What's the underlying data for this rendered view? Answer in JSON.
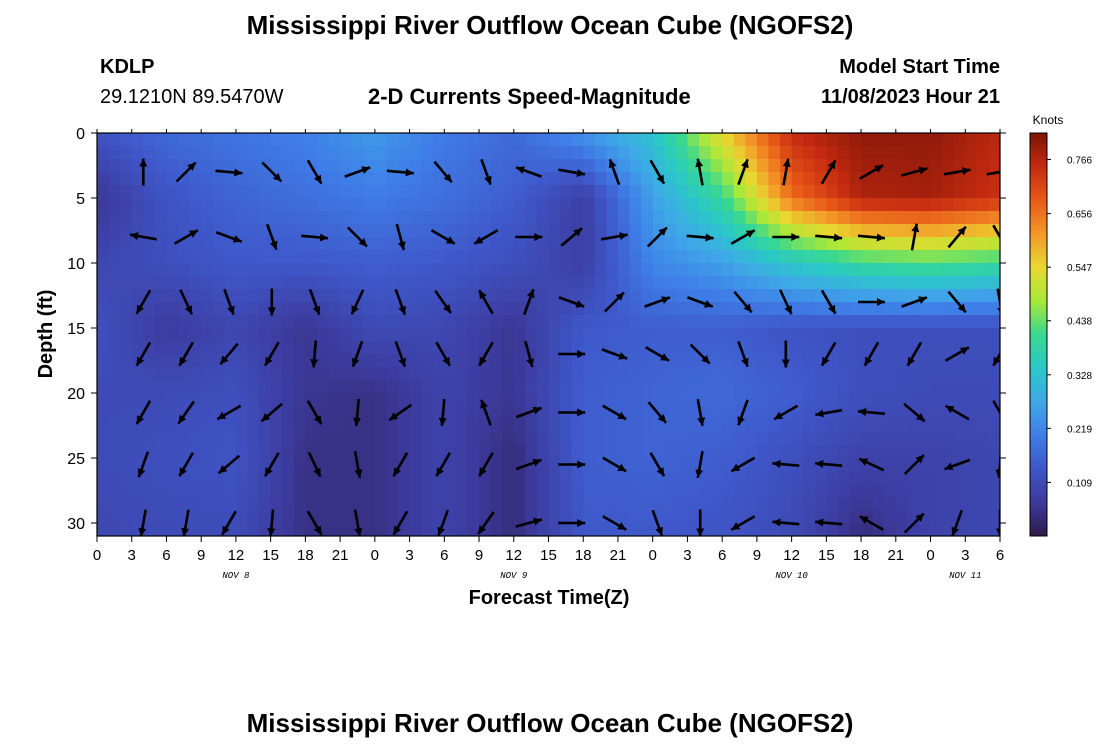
{
  "header": {
    "title": "Mississippi River Outflow Ocean Cube (NGOFS2)",
    "station_id": "KDLP",
    "coordinates": "29.1210N  89.5470W",
    "product": "2-D Currents Speed-Magnitude",
    "model_start_label": "Model Start Time",
    "model_start_value": "11/08/2023 Hour 21"
  },
  "footer": {
    "title": "Mississippi River Outflow Ocean Cube (NGOFS2)"
  },
  "chart_data": {
    "type": "heatmap",
    "xlabel": "Forecast Time(Z)",
    "ylabel": "Depth (ft)",
    "x_tick_labels": [
      "0",
      "3",
      "6",
      "9",
      "12",
      "15",
      "18",
      "21",
      "0",
      "3",
      "6",
      "9",
      "12",
      "15",
      "18",
      "21",
      "0",
      "3",
      "6",
      "9",
      "12",
      "15",
      "18",
      "21",
      "0",
      "3",
      "6"
    ],
    "date_labels": [
      {
        "label": "NOV 8",
        "hour": 12
      },
      {
        "label": "NOV 9",
        "hour": 36
      },
      {
        "label": "NOV 10",
        "hour": 60
      },
      {
        "label": "NOV 11",
        "hour": 75
      }
    ],
    "xlim": [
      0,
      78
    ],
    "ylim": [
      0,
      31
    ],
    "y_ticks": [
      0,
      5,
      10,
      15,
      20,
      25,
      30
    ],
    "colorbar": {
      "title": "Knots",
      "labels": [
        "0.766",
        "0.656",
        "0.547",
        "0.438",
        "0.328",
        "0.219",
        "0.109"
      ],
      "min": 0,
      "max": 0.82,
      "colors": [
        "#2e1a4a",
        "#3c3a9c",
        "#3f56c8",
        "#3f7ee8",
        "#3fa8e8",
        "#2ac8c8",
        "#38d890",
        "#a8e838",
        "#e8d830",
        "#f49828",
        "#e85a18",
        "#c42a10",
        "#7a1408"
      ]
    },
    "speed_grid": {
      "hours": [
        0,
        6,
        12,
        18,
        24,
        30,
        36,
        42,
        48,
        54,
        60,
        66,
        72,
        78
      ],
      "depths": [
        0,
        5,
        10,
        15,
        20,
        25,
        31
      ],
      "values": [
        [
          0.13,
          0.17,
          0.19,
          0.21,
          0.25,
          0.2,
          0.17,
          0.24,
          0.33,
          0.55,
          0.75,
          0.8,
          0.8,
          0.76
        ],
        [
          0.06,
          0.13,
          0.16,
          0.18,
          0.2,
          0.18,
          0.15,
          0.08,
          0.26,
          0.4,
          0.66,
          0.77,
          0.78,
          0.74
        ],
        [
          0.1,
          0.12,
          0.14,
          0.14,
          0.15,
          0.14,
          0.12,
          0.08,
          0.22,
          0.26,
          0.34,
          0.4,
          0.42,
          0.4
        ],
        [
          0.12,
          0.07,
          0.1,
          0.06,
          0.11,
          0.1,
          0.06,
          0.14,
          0.15,
          0.15,
          0.13,
          0.12,
          0.12,
          0.12
        ],
        [
          0.11,
          0.11,
          0.12,
          0.06,
          0.05,
          0.09,
          0.06,
          0.15,
          0.16,
          0.17,
          0.15,
          0.12,
          0.11,
          0.11
        ],
        [
          0.11,
          0.12,
          0.13,
          0.05,
          0.05,
          0.09,
          0.04,
          0.15,
          0.16,
          0.15,
          0.12,
          0.09,
          0.09,
          0.1
        ],
        [
          0.1,
          0.11,
          0.11,
          0.05,
          0.05,
          0.09,
          0.04,
          0.14,
          0.14,
          0.13,
          0.11,
          0.04,
          0.09,
          0.1
        ]
      ]
    },
    "vector_depths": [
      3.0,
      8.0,
      13.0,
      17.0,
      21.5,
      25.5,
      30.0
    ],
    "vector_directions_deg": [
      [
        0,
        45,
        95,
        135,
        150,
        70,
        95,
        140,
        160,
        290,
        100,
        340,
        150,
        350,
        20,
        10,
        30,
        60,
        75,
        80,
        80
      ],
      [
        280,
        60,
        110,
        160,
        95,
        135,
        165,
        120,
        240,
        90,
        50,
        80,
        45,
        95,
        60,
        90,
        95,
        95,
        10,
        40,
        150
      ],
      [
        210,
        155,
        160,
        180,
        160,
        205,
        160,
        145,
        330,
        20,
        110,
        45,
        70,
        110,
        140,
        155,
        150,
        90,
        70,
        140,
        170
      ],
      [
        210,
        210,
        220,
        210,
        185,
        200,
        160,
        150,
        210,
        165,
        90,
        110,
        120,
        135,
        160,
        180,
        210,
        210,
        210,
        60,
        210
      ],
      [
        210,
        215,
        240,
        230,
        150,
        185,
        235,
        185,
        340,
        70,
        90,
        120,
        140,
        170,
        200,
        240,
        260,
        275,
        130,
        300,
        150
      ],
      [
        200,
        210,
        230,
        210,
        155,
        170,
        210,
        210,
        210,
        70,
        90,
        120,
        150,
        190,
        240,
        275,
        275,
        295,
        45,
        250,
        185
      ],
      [
        190,
        190,
        210,
        185,
        150,
        170,
        210,
        200,
        215,
        75,
        90,
        120,
        160,
        180,
        240,
        275,
        275,
        300,
        45,
        200,
        180
      ]
    ]
  }
}
